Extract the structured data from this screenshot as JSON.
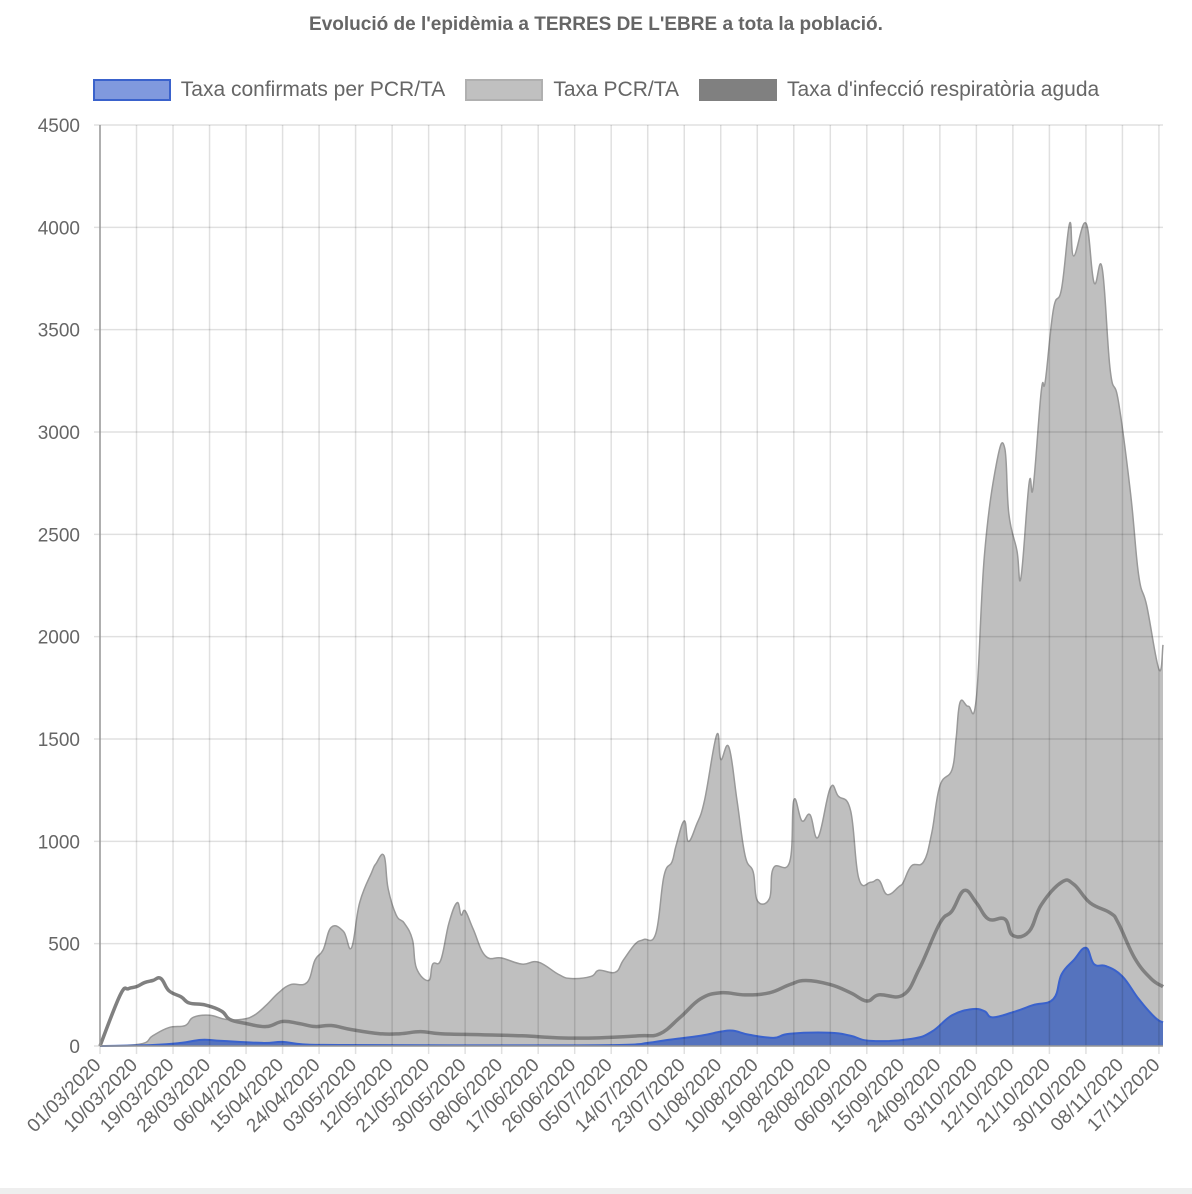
{
  "chart_data": {
    "type": "area",
    "title": "Evolució de l'epidèmia a TERRES DE L'EBRE a tota la població.",
    "x_unit": "days since 01/03/2020",
    "xlim": [
      0,
      262
    ],
    "ylim": [
      0,
      4500
    ],
    "y_ticks": [
      "0",
      "500",
      "1000",
      "1500",
      "2000",
      "2500",
      "3000",
      "3500",
      "4000",
      "4500"
    ],
    "x_tick_labels": [
      "01/03/2020",
      "10/03/2020",
      "19/03/2020",
      "28/03/2020",
      "06/04/2020",
      "15/04/2020",
      "24/04/2020",
      "03/05/2020",
      "12/05/2020",
      "21/05/2020",
      "30/05/2020",
      "08/06/2020",
      "17/06/2020",
      "26/06/2020",
      "05/07/2020",
      "14/07/2020",
      "23/07/2020",
      "01/08/2020",
      "10/08/2020",
      "19/08/2020",
      "28/08/2020",
      "06/09/2020",
      "15/09/2020",
      "24/09/2020",
      "03/10/2020",
      "12/10/2020",
      "21/10/2020",
      "30/10/2020",
      "08/11/2020",
      "17/11/2020"
    ],
    "x_tick_step_days": 9,
    "grid": true,
    "legend_position": "top",
    "series": [
      {
        "name": "Taxa PCR/TA",
        "color": "#c0c0c0",
        "stroke": "#999999",
        "kind": "area",
        "points": [
          [
            0,
            0
          ],
          [
            10,
            10
          ],
          [
            13,
            50
          ],
          [
            17,
            90
          ],
          [
            21,
            100
          ],
          [
            23,
            140
          ],
          [
            27,
            150
          ],
          [
            31,
            130
          ],
          [
            35,
            130
          ],
          [
            38,
            150
          ],
          [
            41,
            200
          ],
          [
            44,
            260
          ],
          [
            47,
            300
          ],
          [
            51,
            310
          ],
          [
            53,
            420
          ],
          [
            55,
            470
          ],
          [
            57,
            580
          ],
          [
            60,
            560
          ],
          [
            62,
            480
          ],
          [
            64,
            700
          ],
          [
            67,
            850
          ],
          [
            68,
            890
          ],
          [
            70,
            930
          ],
          [
            71,
            770
          ],
          [
            73,
            640
          ],
          [
            75,
            600
          ],
          [
            77,
            520
          ],
          [
            78,
            380
          ],
          [
            81,
            320
          ],
          [
            82,
            400
          ],
          [
            84,
            420
          ],
          [
            86,
            600
          ],
          [
            88,
            700
          ],
          [
            89,
            640
          ],
          [
            90,
            660
          ],
          [
            92,
            570
          ],
          [
            95,
            440
          ],
          [
            99,
            430
          ],
          [
            104,
            400
          ],
          [
            108,
            410
          ],
          [
            113,
            350
          ],
          [
            116,
            330
          ],
          [
            121,
            340
          ],
          [
            123,
            370
          ],
          [
            127,
            360
          ],
          [
            129,
            420
          ],
          [
            132,
            500
          ],
          [
            134,
            520
          ],
          [
            137,
            550
          ],
          [
            139,
            830
          ],
          [
            141,
            900
          ],
          [
            142,
            980
          ],
          [
            144,
            1100
          ],
          [
            145,
            1000
          ],
          [
            147,
            1080
          ],
          [
            149,
            1200
          ],
          [
            152,
            1520
          ],
          [
            153,
            1400
          ],
          [
            155,
            1460
          ],
          [
            157,
            1200
          ],
          [
            159,
            930
          ],
          [
            161,
            850
          ],
          [
            162,
            710
          ],
          [
            165,
            720
          ],
          [
            166,
            870
          ],
          [
            170,
            900
          ],
          [
            171,
            1200
          ],
          [
            173,
            1100
          ],
          [
            175,
            1130
          ],
          [
            177,
            1020
          ],
          [
            180,
            1260
          ],
          [
            182,
            1220
          ],
          [
            185,
            1150
          ],
          [
            187,
            820
          ],
          [
            190,
            800
          ],
          [
            192,
            810
          ],
          [
            194,
            740
          ],
          [
            197,
            780
          ],
          [
            198,
            800
          ],
          [
            200,
            880
          ],
          [
            203,
            900
          ],
          [
            205,
            1040
          ],
          [
            207,
            1270
          ],
          [
            210,
            1350
          ],
          [
            211,
            1500
          ],
          [
            212,
            1680
          ],
          [
            214,
            1660
          ],
          [
            216,
            1700
          ],
          [
            218,
            2400
          ],
          [
            221,
            2850
          ],
          [
            223,
            2920
          ],
          [
            224,
            2600
          ],
          [
            226,
            2420
          ],
          [
            227,
            2290
          ],
          [
            229,
            2750
          ],
          [
            230,
            2730
          ],
          [
            232,
            3200
          ],
          [
            233,
            3250
          ],
          [
            235,
            3600
          ],
          [
            237,
            3700
          ],
          [
            239,
            4020
          ],
          [
            240,
            3860
          ],
          [
            243,
            4020
          ],
          [
            245,
            3730
          ],
          [
            247,
            3800
          ],
          [
            249,
            3300
          ],
          [
            251,
            3150
          ],
          [
            254,
            2700
          ],
          [
            256,
            2300
          ],
          [
            258,
            2150
          ],
          [
            261,
            1840
          ],
          [
            262,
            1960
          ]
        ]
      },
      {
        "name": "Taxa confirmats per PCR/TA",
        "color": "#5b78c4",
        "stroke": "#3a62cc",
        "kind": "area",
        "points": [
          [
            0,
            0
          ],
          [
            13,
            5
          ],
          [
            20,
            15
          ],
          [
            25,
            30
          ],
          [
            30,
            25
          ],
          [
            40,
            15
          ],
          [
            45,
            20
          ],
          [
            50,
            8
          ],
          [
            60,
            5
          ],
          [
            100,
            3
          ],
          [
            128,
            5
          ],
          [
            135,
            15
          ],
          [
            140,
            30
          ],
          [
            148,
            50
          ],
          [
            153,
            70
          ],
          [
            156,
            75
          ],
          [
            160,
            55
          ],
          [
            166,
            40
          ],
          [
            170,
            60
          ],
          [
            180,
            65
          ],
          [
            185,
            50
          ],
          [
            190,
            25
          ],
          [
            200,
            35
          ],
          [
            205,
            70
          ],
          [
            210,
            150
          ],
          [
            215,
            180
          ],
          [
            218,
            170
          ],
          [
            220,
            140
          ],
          [
            225,
            165
          ],
          [
            230,
            200
          ],
          [
            235,
            230
          ],
          [
            237,
            350
          ],
          [
            240,
            420
          ],
          [
            243,
            480
          ],
          [
            245,
            400
          ],
          [
            248,
            390
          ],
          [
            252,
            340
          ],
          [
            256,
            230
          ],
          [
            260,
            140
          ],
          [
            262,
            115
          ]
        ]
      },
      {
        "name": "Taxa d'infecció respiratòria aguda",
        "color": "#808080",
        "stroke": "#808080",
        "kind": "line",
        "points": [
          [
            0,
            0
          ],
          [
            5,
            250
          ],
          [
            7,
            280
          ],
          [
            9,
            290
          ],
          [
            11,
            310
          ],
          [
            13,
            320
          ],
          [
            15,
            330
          ],
          [
            17,
            270
          ],
          [
            20,
            240
          ],
          [
            22,
            210
          ],
          [
            26,
            200
          ],
          [
            30,
            170
          ],
          [
            32,
            130
          ],
          [
            36,
            110
          ],
          [
            41,
            95
          ],
          [
            45,
            120
          ],
          [
            49,
            110
          ],
          [
            53,
            95
          ],
          [
            57,
            100
          ],
          [
            62,
            80
          ],
          [
            69,
            60
          ],
          [
            74,
            60
          ],
          [
            79,
            70
          ],
          [
            84,
            60
          ],
          [
            94,
            55
          ],
          [
            104,
            50
          ],
          [
            113,
            40
          ],
          [
            123,
            40
          ],
          [
            133,
            50
          ],
          [
            138,
            60
          ],
          [
            143,
            140
          ],
          [
            148,
            230
          ],
          [
            153,
            260
          ],
          [
            159,
            250
          ],
          [
            165,
            260
          ],
          [
            170,
            300
          ],
          [
            174,
            320
          ],
          [
            180,
            300
          ],
          [
            185,
            260
          ],
          [
            189,
            220
          ],
          [
            192,
            250
          ],
          [
            198,
            250
          ],
          [
            202,
            380
          ],
          [
            207,
            600
          ],
          [
            210,
            660
          ],
          [
            213,
            760
          ],
          [
            216,
            700
          ],
          [
            219,
            620
          ],
          [
            223,
            620
          ],
          [
            225,
            540
          ],
          [
            229,
            560
          ],
          [
            232,
            690
          ],
          [
            237,
            800
          ],
          [
            240,
            790
          ],
          [
            244,
            700
          ],
          [
            249,
            650
          ],
          [
            251,
            600
          ],
          [
            255,
            430
          ],
          [
            259,
            330
          ],
          [
            262,
            290
          ]
        ]
      }
    ]
  }
}
